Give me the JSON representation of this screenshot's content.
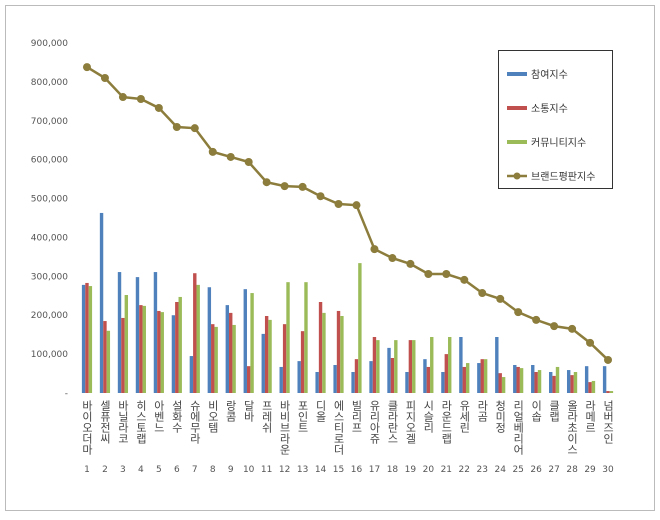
{
  "chart_data": {
    "type": "bar-line",
    "categories": [
      "바이오더마",
      "셀퓨전씨",
      "바닐라코",
      "히스토랩",
      "아벤느",
      "설화수",
      "슈에무라",
      "비오템",
      "랑콤",
      "달바",
      "프레쉬",
      "바비브라운",
      "포인트",
      "디올",
      "에스티로더",
      "빌리프",
      "유리아쥬",
      "클라란스",
      "피지오겔",
      "시슬리",
      "라운드랩",
      "유세린",
      "라곰",
      "청미정",
      "리얼베리어",
      "이솝",
      "클랩",
      "올라초이스",
      "라메르",
      "넘버즈인"
    ],
    "ranks": [
      1,
      2,
      3,
      4,
      5,
      6,
      7,
      8,
      9,
      10,
      11,
      12,
      13,
      14,
      15,
      16,
      17,
      18,
      19,
      20,
      21,
      22,
      23,
      24,
      25,
      26,
      27,
      28,
      29,
      30
    ],
    "series": [
      {
        "name": "참여지수",
        "type": "bar",
        "color": "#4f81bd",
        "values": [
          278000,
          463000,
          311000,
          298000,
          311000,
          200000,
          95000,
          272000,
          226000,
          267000,
          152000,
          67000,
          82000,
          54000,
          72000,
          54000,
          82000,
          116000,
          54000,
          87000,
          54000,
          144000,
          77000,
          144000,
          72000,
          72000,
          54000,
          59000,
          69000,
          69000
        ]
      },
      {
        "name": "소통지수",
        "type": "bar",
        "color": "#c0504d",
        "values": [
          283000,
          185000,
          193000,
          226000,
          211000,
          234000,
          308000,
          177000,
          206000,
          69000,
          198000,
          177000,
          159000,
          234000,
          211000,
          87000,
          144000,
          90000,
          136000,
          67000,
          100000,
          67000,
          87000,
          51000,
          67000,
          54000,
          44000,
          46000,
          28000,
          5000
        ]
      },
      {
        "name": "커뮤니티지수",
        "type": "bar",
        "color": "#9bbb59",
        "values": [
          275000,
          160000,
          252000,
          224000,
          208000,
          247000,
          278000,
          170000,
          175000,
          257000,
          188000,
          285000,
          285000,
          206000,
          198000,
          334000,
          136000,
          136000,
          136000,
          144000,
          144000,
          77000,
          87000,
          41000,
          64000,
          59000,
          67000,
          54000,
          31000,
          5000
        ]
      },
      {
        "name": "브랜드평판지수",
        "type": "line",
        "color": "#8c7d3c",
        "values": [
          838000,
          810000,
          761000,
          756000,
          733000,
          684000,
          681000,
          620000,
          607000,
          594000,
          542000,
          532000,
          530000,
          506000,
          486000,
          483000,
          370000,
          347000,
          332000,
          306000,
          306000,
          291000,
          257000,
          242000,
          208000,
          188000,
          172000,
          165000,
          129000,
          85000
        ]
      }
    ],
    "ylim": [
      0,
      900000
    ],
    "yticks": [
      {
        "value": 0,
        "label": "-"
      },
      {
        "value": 100000,
        "label": "100,000"
      },
      {
        "value": 200000,
        "label": "200,000"
      },
      {
        "value": 300000,
        "label": "300,000"
      },
      {
        "value": 400000,
        "label": "400,000"
      },
      {
        "value": 500000,
        "label": "500,000"
      },
      {
        "value": 600000,
        "label": "600,000"
      },
      {
        "value": 700000,
        "label": "700,000"
      },
      {
        "value": 800000,
        "label": "800,000"
      },
      {
        "value": 900000,
        "label": "900,000"
      }
    ],
    "legend": "top-right"
  }
}
